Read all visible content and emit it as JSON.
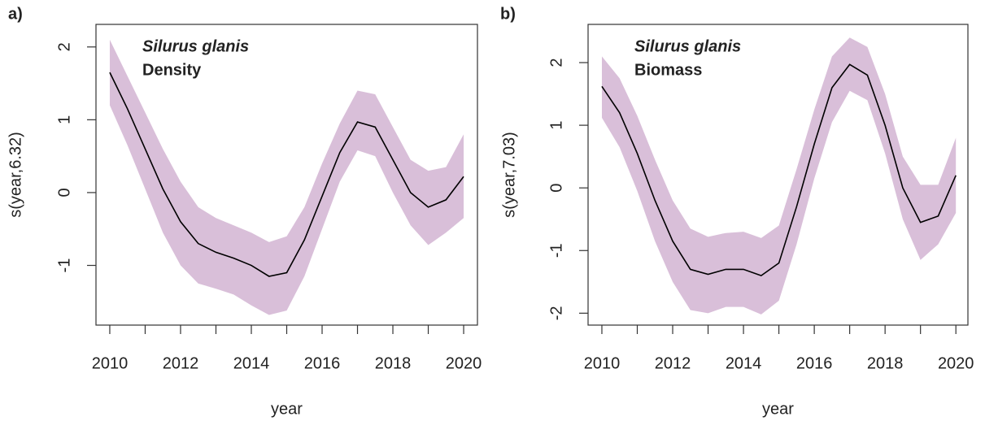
{
  "chart_data": [
    {
      "type": "line",
      "panel_label": "a)",
      "title": "Silurus glanis",
      "subtitle": "Density",
      "xlabel": "year",
      "ylabel": "s(year,6.32)",
      "x": [
        2010,
        2010.5,
        2011,
        2011.5,
        2012,
        2012.5,
        2013,
        2013.5,
        2014,
        2014.5,
        2015,
        2015.5,
        2016,
        2016.5,
        2017,
        2017.5,
        2018,
        2018.5,
        2019,
        2019.5,
        2020
      ],
      "values": [
        1.65,
        1.15,
        0.6,
        0.05,
        -0.4,
        -0.7,
        -0.82,
        -0.9,
        -1.0,
        -1.15,
        -1.1,
        -0.65,
        -0.05,
        0.55,
        0.97,
        0.9,
        0.45,
        0.0,
        -0.2,
        -0.1,
        0.22
      ],
      "lower": [
        1.2,
        0.65,
        0.05,
        -0.55,
        -1.0,
        -1.25,
        -1.32,
        -1.4,
        -1.55,
        -1.68,
        -1.62,
        -1.15,
        -0.5,
        0.15,
        0.58,
        0.5,
        0.0,
        -0.45,
        -0.72,
        -0.55,
        -0.35
      ],
      "upper": [
        2.1,
        1.6,
        1.1,
        0.6,
        0.15,
        -0.2,
        -0.35,
        -0.45,
        -0.55,
        -0.68,
        -0.6,
        -0.2,
        0.4,
        0.95,
        1.4,
        1.35,
        0.9,
        0.45,
        0.3,
        0.35,
        0.8
      ],
      "color": "#000000",
      "band_color": "#d9bfd9",
      "xlim": [
        2009.61,
        2020.39
      ],
      "ylim": [
        -1.82,
        2.31
      ],
      "xticks": [
        2010,
        2012,
        2014,
        2016,
        2018,
        2020
      ],
      "x_minor_ticks": [
        2011,
        2013,
        2015,
        2017,
        2019
      ],
      "yticks": [
        -1,
        0,
        1,
        2
      ]
    },
    {
      "type": "line",
      "panel_label": "b)",
      "title": "Silurus glanis",
      "subtitle": "Biomass",
      "xlabel": "year",
      "ylabel": "s(year,7.03)",
      "x": [
        2010,
        2010.5,
        2011,
        2011.5,
        2012,
        2012.5,
        2013,
        2013.5,
        2014,
        2014.5,
        2015,
        2015.5,
        2016,
        2016.5,
        2017,
        2017.5,
        2018,
        2018.5,
        2019,
        2019.5,
        2020
      ],
      "values": [
        1.62,
        1.2,
        0.55,
        -0.2,
        -0.85,
        -1.3,
        -1.38,
        -1.3,
        -1.3,
        -1.4,
        -1.2,
        -0.3,
        0.7,
        1.6,
        1.97,
        1.8,
        1.0,
        0.0,
        -0.55,
        -0.45,
        0.2
      ],
      "lower": [
        1.12,
        0.65,
        -0.05,
        -0.85,
        -1.5,
        -1.95,
        -2.0,
        -1.9,
        -1.9,
        -2.02,
        -1.8,
        -0.9,
        0.15,
        1.05,
        1.55,
        1.4,
        0.55,
        -0.5,
        -1.15,
        -0.9,
        -0.4
      ],
      "upper": [
        2.1,
        1.75,
        1.15,
        0.45,
        -0.2,
        -0.65,
        -0.78,
        -0.72,
        -0.7,
        -0.8,
        -0.6,
        0.3,
        1.25,
        2.1,
        2.4,
        2.25,
        1.5,
        0.5,
        0.05,
        0.05,
        0.8
      ],
      "color": "#000000",
      "band_color": "#d9bfd9",
      "xlim": [
        2009.61,
        2020.34
      ],
      "ylim": [
        -2.19,
        2.61
      ],
      "xticks": [
        2010,
        2012,
        2014,
        2016,
        2018,
        2020
      ],
      "x_minor_ticks": [
        2011,
        2013,
        2015,
        2017,
        2019
      ],
      "yticks": [
        -2,
        -1,
        0,
        1,
        2
      ]
    }
  ]
}
